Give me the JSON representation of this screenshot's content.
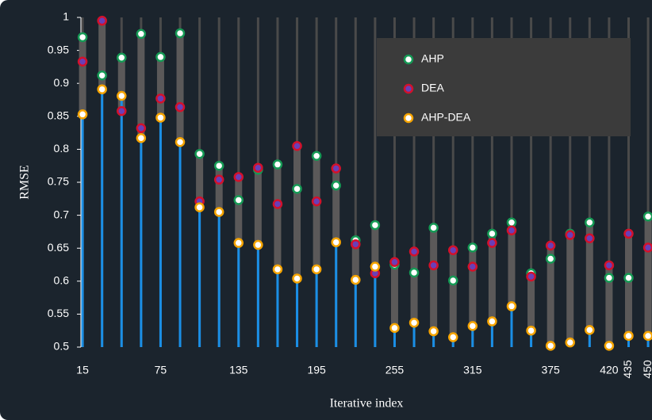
{
  "chart_data": {
    "type": "range-dot",
    "xlabel": "Iterative index",
    "ylabel": "RMSE",
    "x": [
      15,
      30,
      45,
      60,
      75,
      90,
      105,
      120,
      135,
      150,
      165,
      180,
      195,
      210,
      225,
      240,
      255,
      270,
      285,
      300,
      315,
      330,
      345,
      360,
      375,
      390,
      405,
      420,
      435,
      450
    ],
    "xlim": [
      12.5,
      453
    ],
    "xticks": [
      15,
      75,
      135,
      195,
      255,
      315,
      375,
      420,
      435,
      450
    ],
    "ylim": [
      0.5,
      1
    ],
    "yticks": [
      0.5,
      0.55,
      0.6,
      0.65,
      0.7,
      0.75,
      0.8,
      0.85,
      0.9,
      0.95,
      1
    ],
    "legend": "upper right",
    "series": [
      {
        "name": "AHP",
        "color": "#159a55",
        "fill": "#ffffff",
        "values": [
          0.97,
          0.912,
          0.939,
          0.975,
          0.94,
          0.976,
          0.793,
          0.775,
          0.723,
          0.769,
          0.777,
          0.74,
          0.79,
          0.745,
          0.662,
          0.685,
          0.625,
          0.613,
          0.681,
          0.601,
          0.651,
          0.672,
          0.689,
          0.612,
          0.634,
          0.672,
          0.689,
          0.605,
          0.605,
          0.698
        ]
      },
      {
        "name": "DEA",
        "color": "#d3112b",
        "fill": "#6a3fb8",
        "values": [
          0.933,
          0.995,
          0.858,
          0.832,
          0.877,
          0.864,
          0.721,
          0.754,
          0.758,
          0.772,
          0.717,
          0.805,
          0.721,
          0.771,
          0.656,
          0.612,
          0.629,
          0.645,
          0.624,
          0.647,
          0.622,
          0.658,
          0.677,
          0.607,
          0.654,
          0.67,
          0.665,
          0.624,
          0.672,
          0.651
        ]
      },
      {
        "name": "AHP-DEA",
        "color": "#f5a400",
        "fill": "#ffffff",
        "values": [
          0.853,
          0.891,
          0.881,
          0.817,
          0.848,
          0.811,
          0.712,
          0.705,
          0.658,
          0.655,
          0.618,
          0.604,
          0.618,
          0.659,
          0.602,
          0.622,
          0.529,
          0.537,
          0.524,
          0.515,
          0.532,
          0.539,
          0.562,
          0.525,
          0.502,
          0.507,
          0.526,
          0.502,
          0.517,
          0.517
        ]
      }
    ]
  }
}
